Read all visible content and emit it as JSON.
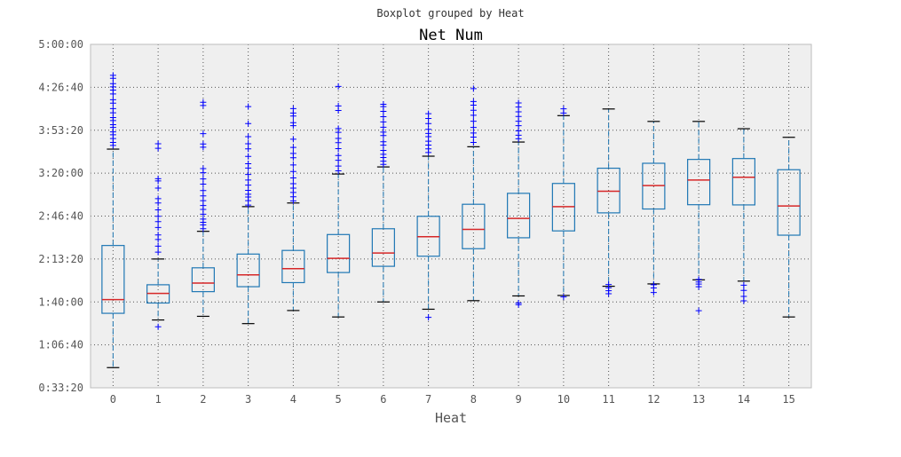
{
  "suptitle": "Boxplot grouped by Heat",
  "chart_data": {
    "type": "boxplot",
    "title": "Net Num",
    "xlabel": "Heat",
    "ylabel": "",
    "grid": true,
    "categories": [
      "0",
      "1",
      "2",
      "3",
      "4",
      "5",
      "6",
      "7",
      "8",
      "9",
      "10",
      "11",
      "12",
      "13",
      "14",
      "15"
    ],
    "y_unit": "seconds",
    "ylim": [
      2000,
      18000
    ],
    "y_ticks": [
      2000,
      4000,
      6000,
      8000,
      10000,
      12000,
      14000,
      16000,
      18000
    ],
    "y_tick_labels": [
      "0:33:20",
      "1:06:40",
      "1:40:00",
      "2:13:20",
      "2:46:40",
      "3:20:00",
      "3:53:20",
      "4:26:40",
      "5:00:00"
    ],
    "boxes": [
      {
        "category": "0",
        "whisker_low": 2940,
        "q1": 5470,
        "median": 6110,
        "q3": 8630,
        "whisker_high": 13120,
        "outliers": [
          13290,
          13430,
          13610,
          13790,
          13920,
          14130,
          14260,
          14450,
          14590,
          14810,
          15010,
          15260,
          15420,
          15690,
          15870,
          16020,
          16170,
          16420,
          16560
        ]
      },
      {
        "category": "1",
        "whisker_low": 5160,
        "q1": 5950,
        "median": 6400,
        "q3": 6800,
        "whisker_high": 8000,
        "outliers": [
          4840,
          8320,
          8600,
          8910,
          9120,
          9470,
          9740,
          9990,
          10290,
          10610,
          10810,
          11300,
          11640,
          11740,
          13160,
          13370
        ]
      },
      {
        "category": "2",
        "whisker_low": 5330,
        "q1": 6480,
        "median": 6880,
        "q3": 7590,
        "whisker_high": 9290,
        "outliers": [
          9410,
          9590,
          9710,
          9860,
          10090,
          10310,
          10490,
          10720,
          10940,
          11190,
          11490,
          11730,
          12020,
          12210,
          13210,
          13360,
          13840,
          15150,
          15300
        ]
      },
      {
        "category": "3",
        "whisker_low": 4990,
        "q1": 6710,
        "median": 7260,
        "q3": 8230,
        "whisker_high": 10440,
        "outliers": [
          10510,
          10720,
          10890,
          11020,
          11200,
          11440,
          11680,
          11940,
          12240,
          12440,
          12780,
          13130,
          13370,
          13700,
          14310,
          15100
        ]
      },
      {
        "category": "4",
        "whisker_low": 5600,
        "q1": 6900,
        "median": 7550,
        "q3": 8400,
        "whisker_high": 10610,
        "outliers": [
          10710,
          10900,
          11100,
          11300,
          11510,
          11780,
          12080,
          12380,
          12720,
          12920,
          13200,
          13580,
          14210,
          14350,
          14660,
          14800,
          15010
        ]
      },
      {
        "category": "5",
        "whisker_low": 5300,
        "q1": 7370,
        "median": 8030,
        "q3": 9140,
        "whisker_high": 11960,
        "outliers": [
          12110,
          12330,
          12600,
          12820,
          13140,
          13420,
          13620,
          13900,
          14080,
          14920,
          15130,
          16040
        ]
      },
      {
        "category": "6",
        "whisker_low": 6000,
        "q1": 7660,
        "median": 8280,
        "q3": 9410,
        "whisker_high": 12290,
        "outliers": [
          12410,
          12560,
          12730,
          12880,
          13060,
          13300,
          13460,
          13750,
          13910,
          14140,
          14390,
          14630,
          14880,
          15100,
          15210
        ]
      },
      {
        "category": "7",
        "whisker_low": 5660,
        "q1": 8130,
        "median": 9040,
        "q3": 9990,
        "whisker_high": 12790,
        "outliers": [
          5280,
          12960,
          13130,
          13310,
          13490,
          13700,
          13850,
          14040,
          14310,
          14550,
          14770
        ]
      },
      {
        "category": "8",
        "whisker_low": 6060,
        "q1": 8480,
        "median": 9380,
        "q3": 10550,
        "whisker_high": 13230,
        "outliers": [
          13430,
          13680,
          13870,
          14130,
          14420,
          14700,
          14930,
          15170,
          15340,
          15940
        ]
      },
      {
        "category": "9",
        "whisker_low": 6280,
        "q1": 8990,
        "median": 9890,
        "q3": 11060,
        "whisker_high": 13450,
        "outliers": [
          5870,
          5950,
          13600,
          13770,
          13970,
          14210,
          14420,
          14640,
          14860,
          15080,
          15270
        ]
      },
      {
        "category": "10",
        "whisker_low": 6300,
        "q1": 9310,
        "median": 10440,
        "q3": 11520,
        "whisker_high": 14680,
        "outliers": [
          6230,
          14800,
          15000
        ]
      },
      {
        "category": "11",
        "whisker_low": 6730,
        "q1": 10150,
        "median": 11160,
        "q3": 12230,
        "whisker_high": 14990,
        "outliers": [
          6380,
          6520,
          6660,
          6810
        ]
      },
      {
        "category": "12",
        "whisker_low": 6840,
        "q1": 10330,
        "median": 11420,
        "q3": 12460,
        "whisker_high": 14410,
        "outliers": [
          6440,
          6650,
          6800
        ]
      },
      {
        "category": "13",
        "whisker_low": 7030,
        "q1": 10530,
        "median": 11680,
        "q3": 12640,
        "whisker_high": 14410,
        "outliers": [
          5590,
          6710,
          6830,
          6930,
          7050
        ]
      },
      {
        "category": "14",
        "whisker_low": 6970,
        "q1": 10520,
        "median": 11810,
        "q3": 12680,
        "whisker_high": 14070,
        "outliers": [
          6050,
          6260,
          6540,
          6780
        ]
      },
      {
        "category": "15",
        "whisker_low": 5300,
        "q1": 9110,
        "median": 10470,
        "q3": 12160,
        "whisker_high": 13670,
        "outliers": []
      }
    ],
    "colors": {
      "box": "#1f77b4",
      "median": "#d62728",
      "outlier": "#0000ff",
      "whisker_cap": "#000000",
      "plot_bg": "#efefef",
      "grid": "#555555",
      "axis_text": "#555555",
      "title": "#000000"
    }
  }
}
